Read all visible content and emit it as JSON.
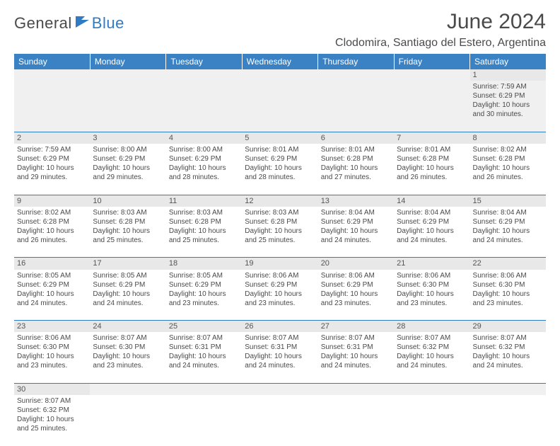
{
  "logo": {
    "part1": "General",
    "part2": "Blue"
  },
  "title": "June 2024",
  "location": "Clodomira, Santiago del Estero, Argentina",
  "colors": {
    "header_bg": "#3b82c4",
    "header_text": "#ffffff",
    "border": "#2f7cc4",
    "daynum_bg": "#e8e8e8",
    "text": "#4a4a4a",
    "logo_blue": "#2f7cc4"
  },
  "weekdays": [
    "Sunday",
    "Monday",
    "Tuesday",
    "Wednesday",
    "Thursday",
    "Friday",
    "Saturday"
  ],
  "weeks": [
    [
      null,
      null,
      null,
      null,
      null,
      null,
      {
        "n": "1",
        "sr": "7:59 AM",
        "ss": "6:29 PM",
        "dl": "10 hours and 30 minutes."
      }
    ],
    [
      {
        "n": "2",
        "sr": "7:59 AM",
        "ss": "6:29 PM",
        "dl": "10 hours and 29 minutes."
      },
      {
        "n": "3",
        "sr": "8:00 AM",
        "ss": "6:29 PM",
        "dl": "10 hours and 29 minutes."
      },
      {
        "n": "4",
        "sr": "8:00 AM",
        "ss": "6:29 PM",
        "dl": "10 hours and 28 minutes."
      },
      {
        "n": "5",
        "sr": "8:01 AM",
        "ss": "6:29 PM",
        "dl": "10 hours and 28 minutes."
      },
      {
        "n": "6",
        "sr": "8:01 AM",
        "ss": "6:28 PM",
        "dl": "10 hours and 27 minutes."
      },
      {
        "n": "7",
        "sr": "8:01 AM",
        "ss": "6:28 PM",
        "dl": "10 hours and 26 minutes."
      },
      {
        "n": "8",
        "sr": "8:02 AM",
        "ss": "6:28 PM",
        "dl": "10 hours and 26 minutes."
      }
    ],
    [
      {
        "n": "9",
        "sr": "8:02 AM",
        "ss": "6:28 PM",
        "dl": "10 hours and 26 minutes."
      },
      {
        "n": "10",
        "sr": "8:03 AM",
        "ss": "6:28 PM",
        "dl": "10 hours and 25 minutes."
      },
      {
        "n": "11",
        "sr": "8:03 AM",
        "ss": "6:28 PM",
        "dl": "10 hours and 25 minutes."
      },
      {
        "n": "12",
        "sr": "8:03 AM",
        "ss": "6:28 PM",
        "dl": "10 hours and 25 minutes."
      },
      {
        "n": "13",
        "sr": "8:04 AM",
        "ss": "6:29 PM",
        "dl": "10 hours and 24 minutes."
      },
      {
        "n": "14",
        "sr": "8:04 AM",
        "ss": "6:29 PM",
        "dl": "10 hours and 24 minutes."
      },
      {
        "n": "15",
        "sr": "8:04 AM",
        "ss": "6:29 PM",
        "dl": "10 hours and 24 minutes."
      }
    ],
    [
      {
        "n": "16",
        "sr": "8:05 AM",
        "ss": "6:29 PM",
        "dl": "10 hours and 24 minutes."
      },
      {
        "n": "17",
        "sr": "8:05 AM",
        "ss": "6:29 PM",
        "dl": "10 hours and 24 minutes."
      },
      {
        "n": "18",
        "sr": "8:05 AM",
        "ss": "6:29 PM",
        "dl": "10 hours and 23 minutes."
      },
      {
        "n": "19",
        "sr": "8:06 AM",
        "ss": "6:29 PM",
        "dl": "10 hours and 23 minutes."
      },
      {
        "n": "20",
        "sr": "8:06 AM",
        "ss": "6:29 PM",
        "dl": "10 hours and 23 minutes."
      },
      {
        "n": "21",
        "sr": "8:06 AM",
        "ss": "6:30 PM",
        "dl": "10 hours and 23 minutes."
      },
      {
        "n": "22",
        "sr": "8:06 AM",
        "ss": "6:30 PM",
        "dl": "10 hours and 23 minutes."
      }
    ],
    [
      {
        "n": "23",
        "sr": "8:06 AM",
        "ss": "6:30 PM",
        "dl": "10 hours and 23 minutes."
      },
      {
        "n": "24",
        "sr": "8:07 AM",
        "ss": "6:30 PM",
        "dl": "10 hours and 23 minutes."
      },
      {
        "n": "25",
        "sr": "8:07 AM",
        "ss": "6:31 PM",
        "dl": "10 hours and 24 minutes."
      },
      {
        "n": "26",
        "sr": "8:07 AM",
        "ss": "6:31 PM",
        "dl": "10 hours and 24 minutes."
      },
      {
        "n": "27",
        "sr": "8:07 AM",
        "ss": "6:31 PM",
        "dl": "10 hours and 24 minutes."
      },
      {
        "n": "28",
        "sr": "8:07 AM",
        "ss": "6:32 PM",
        "dl": "10 hours and 24 minutes."
      },
      {
        "n": "29",
        "sr": "8:07 AM",
        "ss": "6:32 PM",
        "dl": "10 hours and 24 minutes."
      }
    ],
    [
      {
        "n": "30",
        "sr": "8:07 AM",
        "ss": "6:32 PM",
        "dl": "10 hours and 25 minutes."
      },
      null,
      null,
      null,
      null,
      null,
      null
    ]
  ],
  "labels": {
    "sunrise": "Sunrise:",
    "sunset": "Sunset:",
    "daylight": "Daylight:"
  }
}
